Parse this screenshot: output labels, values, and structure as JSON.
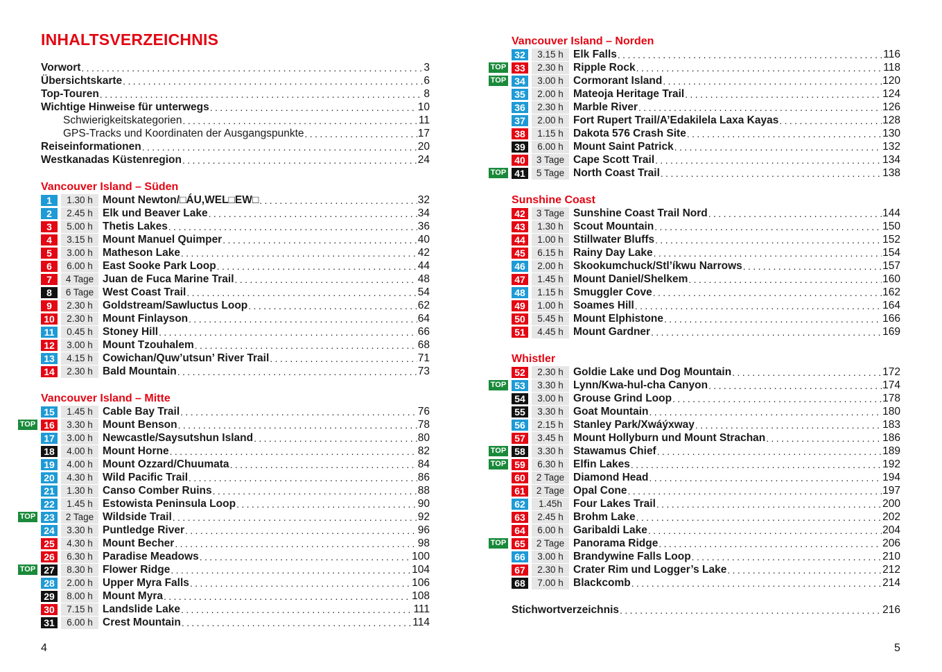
{
  "title": "INHALTSVERZEICHNIS",
  "colors": {
    "b": "#1e9ad6",
    "r": "#e30613",
    "k": "#111111",
    "top_badge": "#1a8a3a",
    "heading": "#e30613",
    "duration_bg": "#e6e6e6"
  },
  "top_label": "TOP",
  "intro": [
    {
      "name": "Vorwort",
      "page": "3"
    },
    {
      "name": "Übersichtskarte",
      "page": "6"
    },
    {
      "name": "Top-Touren",
      "page": "8"
    },
    {
      "name": "Wichtige Hinweise für unterwegs",
      "page": "10"
    },
    {
      "name": "Schwierigkeitskategorien",
      "page": "11",
      "indent": true
    },
    {
      "name": "GPS-Tracks und Koordinaten der Ausgangspunkte",
      "page": "17",
      "indent": true
    },
    {
      "name": "Reiseinformationen",
      "page": "20"
    },
    {
      "name": "Westkanadas Küstenregion",
      "page": "24"
    }
  ],
  "sections": [
    {
      "heading": "Vancouver Island – Süden",
      "entries": [
        {
          "n": "1",
          "c": "b",
          "d": "1.30 h",
          "name": "Mount Newton/□ÁU,WEL□EW□",
          "page": "32"
        },
        {
          "n": "2",
          "c": "b",
          "d": "2.45 h",
          "name": "Elk und Beaver Lake",
          "page": "34"
        },
        {
          "n": "3",
          "c": "r",
          "d": "5.00 h",
          "name": "Thetis Lakes",
          "page": "36"
        },
        {
          "n": "4",
          "c": "r",
          "d": "3.15 h",
          "name": "Mount Manuel Quimper",
          "page": "40"
        },
        {
          "n": "5",
          "c": "r",
          "d": "3.00 h",
          "name": "Matheson Lake",
          "page": "42"
        },
        {
          "n": "6",
          "c": "r",
          "d": "6.00 h",
          "name": "East Sooke Park Loop",
          "page": "44"
        },
        {
          "n": "7",
          "c": "r",
          "d": "4 Tage",
          "name": "Juan de Fuca Marine Trail",
          "page": "48"
        },
        {
          "n": "8",
          "c": "k",
          "d": "6 Tage",
          "name": "West Coast Trail",
          "page": "54"
        },
        {
          "n": "9",
          "c": "r",
          "d": "2.30 h",
          "name": "Goldstream/Sawluctus Loop",
          "page": "62"
        },
        {
          "n": "10",
          "c": "r",
          "d": "2.30 h",
          "name": "Mount Finlayson",
          "page": "64"
        },
        {
          "n": "11",
          "c": "b",
          "d": "0.45 h",
          "name": "Stoney Hill",
          "page": "66"
        },
        {
          "n": "12",
          "c": "r",
          "d": "3.00 h",
          "name": "Mount Tzouhalem",
          "page": "68"
        },
        {
          "n": "13",
          "c": "b",
          "d": "4.15 h",
          "name": "Cowichan/Quw’utsun’ River Trail",
          "page": "71"
        },
        {
          "n": "14",
          "c": "r",
          "d": "2.30 h",
          "name": "Bald Mountain",
          "page": "73"
        }
      ]
    },
    {
      "heading": "Vancouver Island – Mitte",
      "entries": [
        {
          "n": "15",
          "c": "b",
          "d": "1.45 h",
          "name": "Cable Bay Trail",
          "page": "76"
        },
        {
          "n": "16",
          "c": "r",
          "d": "3.30 h",
          "name": "Mount Benson",
          "page": "78",
          "top": true
        },
        {
          "n": "17",
          "c": "b",
          "d": "3.00 h",
          "name": "Newcastle/Saysutshun Island",
          "page": "80"
        },
        {
          "n": "18",
          "c": "k",
          "d": "4.00 h",
          "name": "Mount Horne",
          "page": "82"
        },
        {
          "n": "19",
          "c": "b",
          "d": "4.00 h",
          "name": "Mount Ozzard/Chuumata",
          "page": "84"
        },
        {
          "n": "20",
          "c": "b",
          "d": "4.30 h",
          "name": "Wild Pacific Trail",
          "page": "86"
        },
        {
          "n": "21",
          "c": "b",
          "d": "1.30 h",
          "name": "Canso Comber Ruins",
          "page": "88"
        },
        {
          "n": "22",
          "c": "b",
          "d": "1.45 h",
          "name": "Estowista Peninsula Loop",
          "page": "90"
        },
        {
          "n": "23",
          "c": "b",
          "d": "2 Tage",
          "name": "Wildside Trail",
          "page": "92",
          "top": true
        },
        {
          "n": "24",
          "c": "b",
          "d": "3.30 h",
          "name": "Puntledge River",
          "page": "96"
        },
        {
          "n": "25",
          "c": "r",
          "d": "4.30 h",
          "name": "Mount Becher",
          "page": "98"
        },
        {
          "n": "26",
          "c": "r",
          "d": "6.30 h",
          "name": "Paradise Meadows",
          "page": "100"
        },
        {
          "n": "27",
          "c": "k",
          "d": "8.30 h",
          "name": "Flower Ridge",
          "page": "104",
          "top": true
        },
        {
          "n": "28",
          "c": "b",
          "d": "2.00 h",
          "name": "Upper Myra Falls",
          "page": "106"
        },
        {
          "n": "29",
          "c": "k",
          "d": "8.00 h",
          "name": "Mount Myra",
          "page": "108"
        },
        {
          "n": "30",
          "c": "r",
          "d": "7.15 h",
          "name": "Landslide Lake",
          "page": "111"
        },
        {
          "n": "31",
          "c": "k",
          "d": "6.00 h",
          "name": "Crest Mountain",
          "page": "114"
        }
      ]
    },
    {
      "heading": "Vancouver Island – Norden",
      "entries": [
        {
          "n": "32",
          "c": "b",
          "d": "3.15 h",
          "name": "Elk Falls",
          "page": "116"
        },
        {
          "n": "33",
          "c": "r",
          "d": "2.30 h",
          "name": "Ripple Rock",
          "page": "118",
          "top": true
        },
        {
          "n": "34",
          "c": "b",
          "d": "3.00 h",
          "name": "Cormorant Island",
          "page": "120",
          "top": true
        },
        {
          "n": "35",
          "c": "b",
          "d": "2.00 h",
          "name": "Mateoja Heritage Trail",
          "page": "124"
        },
        {
          "n": "36",
          "c": "b",
          "d": "2.30 h",
          "name": "Marble River",
          "page": "126"
        },
        {
          "n": "37",
          "c": "b",
          "d": "2.00 h",
          "name": "Fort Rupert Trail/A’Edakilela Laxa Kayas",
          "page": "128"
        },
        {
          "n": "38",
          "c": "r",
          "d": "1.15 h",
          "name": "Dakota 576 Crash Site",
          "page": "130"
        },
        {
          "n": "39",
          "c": "k",
          "d": "6.00 h",
          "name": "Mount Saint Patrick",
          "page": "132"
        },
        {
          "n": "40",
          "c": "r",
          "d": "3 Tage",
          "name": "Cape Scott Trail",
          "page": "134"
        },
        {
          "n": "41",
          "c": "k",
          "d": "5 Tage",
          "name": "North Coast Trail",
          "page": "138",
          "top": true
        }
      ]
    },
    {
      "heading": "Sunshine Coast",
      "entries": [
        {
          "n": "42",
          "c": "r",
          "d": "3 Tage",
          "name": "Sunshine Coast Trail Nord",
          "page": "144"
        },
        {
          "n": "43",
          "c": "r",
          "d": "1.30 h",
          "name": "Scout Mountain",
          "page": "150"
        },
        {
          "n": "44",
          "c": "r",
          "d": "1.00 h",
          "name": "Stillwater Bluffs",
          "page": "152"
        },
        {
          "n": "45",
          "c": "r",
          "d": "6.15 h",
          "name": "Rainy Day Lake",
          "page": "154"
        },
        {
          "n": "46",
          "c": "b",
          "d": "2.00 h",
          "name": "Skookumchuck/Stl’íkwu Narrows",
          "page": "157"
        },
        {
          "n": "47",
          "c": "r",
          "d": "1.45 h",
          "name": "Mount Daniel/Shelkem",
          "page": "160"
        },
        {
          "n": "48",
          "c": "b",
          "d": "1.15 h",
          "name": "Smuggler Cove",
          "page": "162"
        },
        {
          "n": "49",
          "c": "r",
          "d": "1.00 h",
          "name": "Soames Hill",
          "page": "164"
        },
        {
          "n": "50",
          "c": "r",
          "d": "5.45 h",
          "name": "Mount Elphistone",
          "page": "166"
        },
        {
          "n": "51",
          "c": "r",
          "d": "4.45 h",
          "name": "Mount Gardner",
          "page": "169"
        }
      ]
    },
    {
      "heading": "Whistler",
      "entries": [
        {
          "n": "52",
          "c": "r",
          "d": "2.30 h",
          "name": "Goldie Lake und Dog Mountain",
          "page": "172"
        },
        {
          "n": "53",
          "c": "b",
          "d": "3.30 h",
          "name": "Lynn/Kwa-hul-cha Canyon",
          "page": "174",
          "top": true
        },
        {
          "n": "54",
          "c": "k",
          "d": "3.00 h",
          "name": "Grouse Grind Loop",
          "page": "178"
        },
        {
          "n": "55",
          "c": "k",
          "d": "3.30 h",
          "name": "Goat Mountain",
          "page": "180"
        },
        {
          "n": "56",
          "c": "b",
          "d": "2.15 h",
          "name": "Stanley Park/Xwáýxway",
          "page": "183"
        },
        {
          "n": "57",
          "c": "r",
          "d": "3.45 h",
          "name": "Mount Hollyburn und Mount Strachan",
          "page": "186"
        },
        {
          "n": "58",
          "c": "k",
          "d": "3.30 h",
          "name": "Stawamus Chief",
          "page": "189",
          "top": true
        },
        {
          "n": "59",
          "c": "r",
          "d": "6.30 h",
          "name": "Elfin Lakes",
          "page": "192",
          "top": true
        },
        {
          "n": "60",
          "c": "r",
          "d": "2 Tage",
          "name": "Diamond Head",
          "page": "194"
        },
        {
          "n": "61",
          "c": "r",
          "d": "2 Tage",
          "name": "Opal Cone",
          "page": "197"
        },
        {
          "n": "62",
          "c": "b",
          "d": "1.45h",
          "name": "Four Lakes Trail",
          "page": "200"
        },
        {
          "n": "63",
          "c": "r",
          "d": "2.45 h",
          "name": "Brohm Lake",
          "page": "202"
        },
        {
          "n": "64",
          "c": "r",
          "d": "6.00 h",
          "name": "Garibaldi Lake",
          "page": "204"
        },
        {
          "n": "65",
          "c": "r",
          "d": "2 Tage",
          "name": "Panorama Ridge",
          "page": "206",
          "top": true
        },
        {
          "n": "66",
          "c": "b",
          "d": "3.00 h",
          "name": "Brandywine Falls Loop",
          "page": "210"
        },
        {
          "n": "67",
          "c": "r",
          "d": "2.30 h",
          "name": "Crater Rim und Logger’s Lake",
          "page": "212"
        },
        {
          "n": "68",
          "c": "k",
          "d": "7.00 h",
          "name": "Blackcomb",
          "page": "214"
        }
      ]
    }
  ],
  "index": {
    "name": "Stichwortverzeichnis",
    "page": "216"
  },
  "page_numbers": {
    "left": "4",
    "right": "5"
  }
}
